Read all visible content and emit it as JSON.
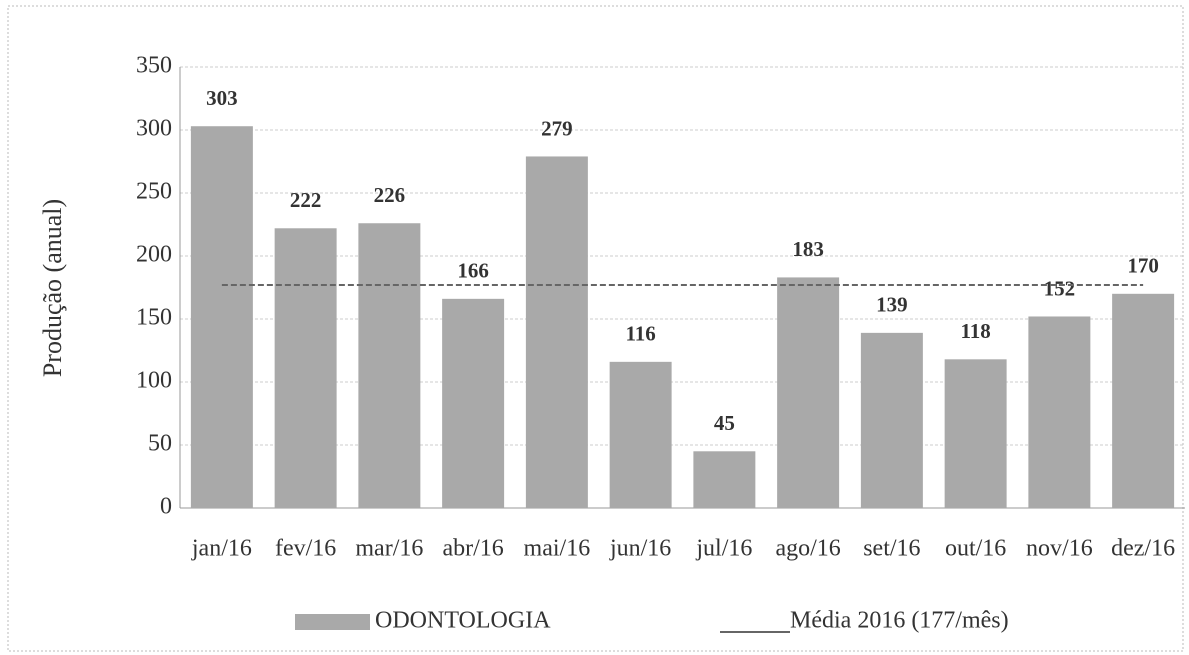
{
  "chart_data": {
    "type": "bar",
    "y_label": "Produção (anual)",
    "categories": [
      "jan/16",
      "fev/16",
      "mar/16",
      "abr/16",
      "mai/16",
      "jun/16",
      "jul/16",
      "ago/16",
      "set/16",
      "out/16",
      "nov/16",
      "dez/16"
    ],
    "series": [
      {
        "name": "ODONTOLOGIA",
        "type": "bar",
        "color": "#a9a9a9",
        "values": [
          303,
          222,
          226,
          166,
          279,
          116,
          45,
          183,
          139,
          118,
          152,
          170
        ]
      },
      {
        "name": "Média 2016 (177/mês)",
        "type": "line",
        "color": "#666666",
        "values": [
          177,
          177,
          177,
          177,
          177,
          177,
          177,
          177,
          177,
          177,
          177,
          177
        ]
      }
    ],
    "ylim": [
      0,
      350
    ],
    "yticks": [
      0,
      50,
      100,
      150,
      200,
      250,
      300,
      350
    ],
    "grid": true
  }
}
